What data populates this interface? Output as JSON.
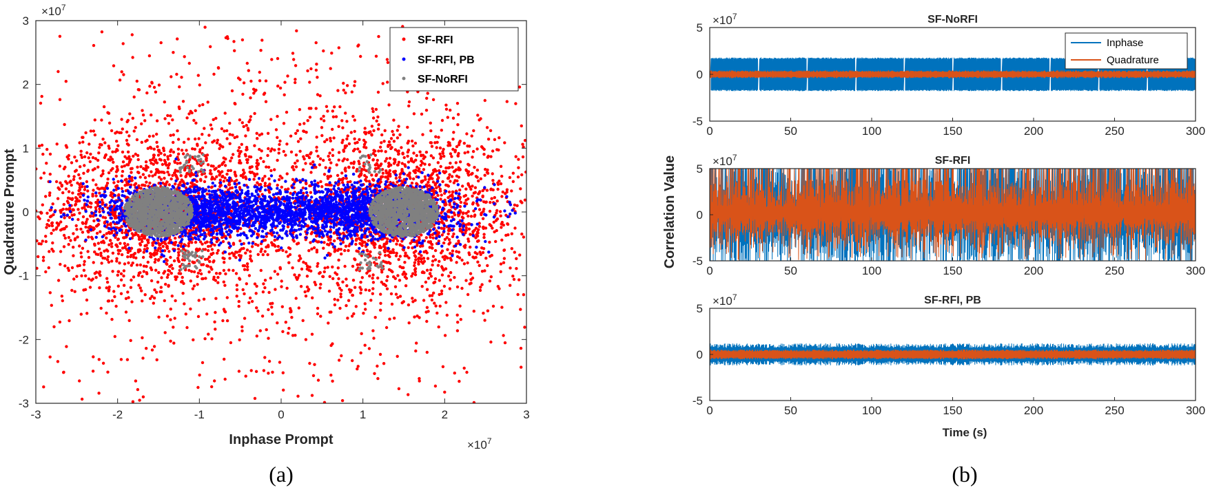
{
  "colors": {
    "rfi": "#ff0000",
    "rfi_pb": "#0000ff",
    "norfi": "#808080",
    "inphase": "#0072bd",
    "quadrature": "#d95319",
    "axis": "#262626"
  },
  "chart_data": [
    {
      "type": "scatter",
      "panel": "a",
      "xlabel": "Inphase Prompt",
      "ylabel": "Quadrature Prompt",
      "x_exponent": "×10",
      "x_exponent_power": "7",
      "y_exponent": "×10",
      "y_exponent_power": "7",
      "xlim": [
        -3,
        3
      ],
      "ylim": [
        -3,
        3
      ],
      "xticks": [
        "-3",
        "-2",
        "-1",
        "0",
        "1",
        "2",
        "3"
      ],
      "yticks": [
        "-3",
        "-2",
        "-1",
        "0",
        "1",
        "2",
        "3"
      ],
      "legend": {
        "position": "top-right",
        "entries": [
          "SF-RFI",
          "SF-RFI, PB",
          "SF-NoRFI"
        ]
      },
      "series": [
        {
          "name": "SF-RFI",
          "color": "#ff0000",
          "clusters": [
            {
              "cx": -1.5,
              "cy": 0,
              "sx": 0.75,
              "sy": 0.6,
              "n": 1600
            },
            {
              "cx": 1.5,
              "cy": 0,
              "sx": 0.75,
              "sy": 0.6,
              "n": 1600
            },
            {
              "cx": 0,
              "cy": 0,
              "sx": 1.7,
              "sy": 1.45,
              "n": 1500
            }
          ]
        },
        {
          "name": "SF-RFI, PB",
          "color": "#0000ff",
          "clusters": [
            {
              "cx": -1.05,
              "cy": 0,
              "sx": 0.55,
              "sy": 0.22,
              "n": 1500
            },
            {
              "cx": 1.05,
              "cy": 0,
              "sx": 0.55,
              "sy": 0.22,
              "n": 1500
            },
            {
              "cx": 0,
              "cy": 0,
              "sx": 0.3,
              "sy": 0.12,
              "n": 250
            }
          ]
        },
        {
          "name": "SF-NoRFI",
          "color": "#808080",
          "clusters": [
            {
              "cx": -1.5,
              "cy": 0,
              "sx": 0.17,
              "sy": 0.17,
              "n": 1400,
              "r": 0.42
            },
            {
              "cx": 1.5,
              "cy": 0,
              "sx": 0.17,
              "sy": 0.17,
              "n": 1400,
              "r": 0.42
            }
          ]
        }
      ],
      "caption": "(a)"
    },
    {
      "type": "line",
      "panel": "b",
      "shared_ylabel": "Correlation Value",
      "shared_xlabel": "Time (s)",
      "caption": "(b)",
      "legend": {
        "position": "top-right",
        "entries": [
          "Inphase",
          "Quadrature"
        ]
      },
      "subplots": [
        {
          "title": "SF-NoRFI",
          "y_exponent": "×10",
          "y_exponent_power": "7",
          "xlim": [
            0,
            300
          ],
          "ylim": [
            -5,
            5
          ],
          "xticks": [
            "0",
            "50",
            "100",
            "150",
            "200",
            "250",
            "300"
          ],
          "yticks": [
            "5",
            "0",
            "-5"
          ],
          "series": [
            {
              "name": "Inphase",
              "amplitude": 1.8,
              "gap_period_s": 30,
              "note": "nominal ±1.8e7 with periodic gaps"
            },
            {
              "name": "Quadrature",
              "amplitude": 0.35
            }
          ]
        },
        {
          "title": "SF-RFI",
          "y_exponent": "×10",
          "y_exponent_power": "7",
          "xlim": [
            0,
            300
          ],
          "ylim": [
            -5,
            5
          ],
          "xticks": [
            "0",
            "50",
            "100",
            "150",
            "200",
            "250",
            "300"
          ],
          "yticks": [
            "5",
            "0",
            "-5"
          ],
          "series": [
            {
              "name": "Inphase",
              "amplitude": 5,
              "note": "saturated ±5e7"
            },
            {
              "name": "Quadrature",
              "amplitude": 5,
              "note": "saturated ±5e7"
            }
          ]
        },
        {
          "title": "SF-RFI, PB",
          "y_exponent": "×10",
          "y_exponent_power": "7",
          "xlim": [
            0,
            300
          ],
          "ylim": [
            -5,
            5
          ],
          "xticks": [
            "0",
            "50",
            "100",
            "150",
            "200",
            "250",
            "300"
          ],
          "yticks": [
            "5",
            "0",
            "-5"
          ],
          "series": [
            {
              "name": "Inphase",
              "amplitude": 1.0
            },
            {
              "name": "Quadrature",
              "amplitude": 0.45
            }
          ]
        }
      ]
    }
  ]
}
